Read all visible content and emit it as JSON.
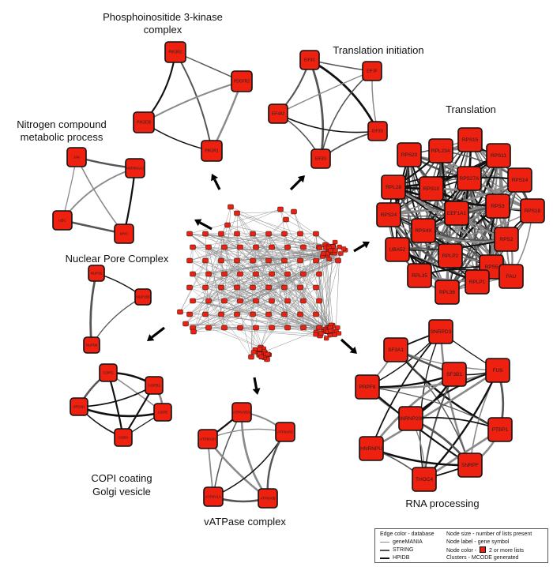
{
  "colors": {
    "node_fill": "#ee2010",
    "node_border": "#111111",
    "edge_genemania": "#8a8a8a",
    "edge_string": "#555555",
    "edge_hpidb": "#111111",
    "arrow": "#000000"
  },
  "clusters": [
    {
      "id": "pi3k",
      "label_lines": [
        "Phosphoinositide 3-kinase",
        "complex"
      ],
      "nodes": [
        "PIK3R2",
        "PDGFR2",
        "PIK3R1",
        "PIK3CB"
      ]
    },
    {
      "id": "transinit",
      "label_lines": [
        "Translation initiation"
      ],
      "nodes": [
        "EIF3C",
        "EIF3F",
        "EIF3D",
        "EIF3G",
        "EIF4A2"
      ]
    },
    {
      "id": "nitrogen",
      "label_lines": [
        "Nitrogen compound",
        "metabolic process"
      ],
      "nodes": [
        "JAK",
        "HSP90AA1",
        "MYC",
        "UBC"
      ]
    },
    {
      "id": "translation",
      "label_lines": [
        "Translation"
      ],
      "nodes": [
        "RPS15",
        "RPS20",
        "RPL23A",
        "RPS11",
        "RPS10",
        "RPS27A",
        "RPS14",
        "RPL28",
        "RPS18",
        "RPS3",
        "EEF1A1",
        "RPS24",
        "RPS4X",
        "RPS2",
        "UBA52",
        "RPLP2",
        "RPS5",
        "FAU",
        "RPL35",
        "RPL36",
        "RPLP1"
      ]
    },
    {
      "id": "npc",
      "label_lines": [
        "Nuclear Pore Complex"
      ],
      "nodes": [
        "NUP35",
        "NUP155",
        "NUP98"
      ]
    },
    {
      "id": "copi",
      "label_lines": [
        "COPI coating",
        "Golgi vesicle"
      ],
      "nodes": [
        "COPG",
        "COPB1",
        "ARCN1",
        "COPE",
        "COPA"
      ]
    },
    {
      "id": "vatpase",
      "label_lines": [
        "vATPase complex"
      ],
      "nodes": [
        "ATP6V0D1",
        "ATP6V1H",
        "ATP6V0C",
        "ATP6V1A",
        "ATP6V0B"
      ]
    },
    {
      "id": "rna",
      "label_lines": [
        "RNA processing"
      ],
      "nodes": [
        "SNRPD3",
        "SF3A1",
        "FUS",
        "SF3B1",
        "PRPF8",
        "SNRNP200",
        "PTBP1",
        "HNRNPU",
        "SNRPF",
        "THOC4"
      ]
    }
  ],
  "legend": {
    "edge_color_title": "Edge color - database",
    "db_genemania": "geneMANIA",
    "db_string": "STRING",
    "db_hpidb": "HPIDB",
    "node_size": "Node size - number of lists present",
    "node_label": "Node label - gene symbol",
    "node_color_prefix": "Node color -",
    "node_color_suffix": "2 or more lists",
    "clusters": "Clusters - MCODE generated"
  }
}
